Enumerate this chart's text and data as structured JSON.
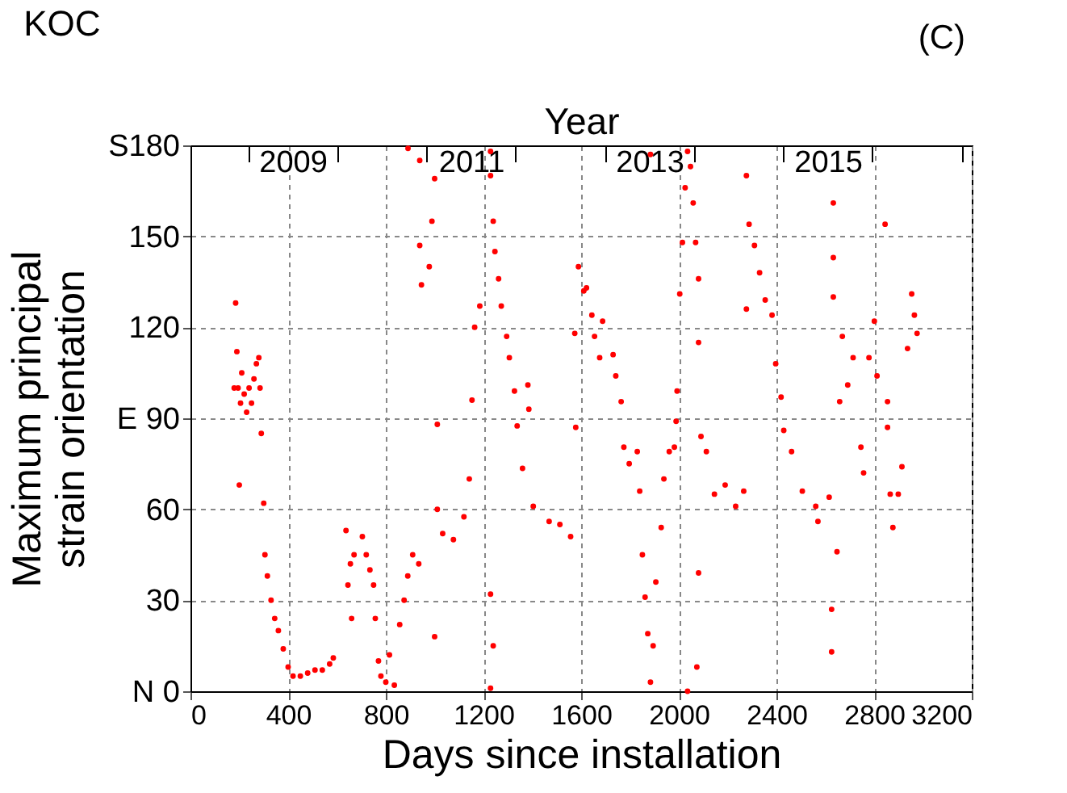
{
  "chart_data": {
    "type": "scatter",
    "title": "KOC",
    "xlabel": "Days since installation",
    "ylabel": "Maximum principal strain orientation",
    "x2label": "Year",
    "annotations": [
      "(C)"
    ],
    "xlim": [
      0,
      3200
    ],
    "xticks": [
      0,
      400,
      800,
      1200,
      1600,
      2000,
      2400,
      2800,
      3200
    ],
    "ylim": [
      0,
      180
    ],
    "yticks": [
      {
        "value": 0,
        "label": "N 0"
      },
      30,
      60,
      {
        "value": 90,
        "label": "E 90"
      },
      120,
      150,
      {
        "value": 180,
        "label": "S180"
      }
    ],
    "x2lim": [
      2008.354,
      2017.115
    ],
    "x2ticks": [
      {
        "value": 2009,
        "label": null
      },
      {
        "value": 2009.5,
        "label": "2009"
      },
      {
        "value": 2010,
        "label": null
      },
      {
        "value": 2011,
        "label": null
      },
      {
        "value": 2011.5,
        "label": "2011"
      },
      {
        "value": 2012,
        "label": null
      },
      {
        "value": 2013,
        "label": null
      },
      {
        "value": 2013.5,
        "label": "2013"
      },
      {
        "value": 2014,
        "label": null
      },
      {
        "value": 2015,
        "label": null
      },
      {
        "value": 2015.5,
        "label": "2015"
      },
      {
        "value": 2016,
        "label": null
      },
      {
        "value": 2017,
        "label": null
      }
    ],
    "grid": true,
    "marker": "circle",
    "series": [
      {
        "color": "#ff0000",
        "x": [
          179,
          185,
          190,
          195,
          200,
          205,
          210,
          220,
          230,
          240,
          250,
          260,
          270,
          280,
          285,
          290,
          300,
          305,
          315,
          330,
          345,
          360,
          380,
          400,
          420,
          450,
          480,
          510,
          540,
          570,
          585,
          637,
          645,
          655,
          660,
          670,
          704,
          720,
          735,
          750,
          757,
          770,
          780,
          800,
          815,
          835,
          857,
          875,
          890,
          910,
          935,
          891,
          939,
          939,
          946,
          978,
          989,
          1000,
          1000,
          1011,
          1011,
          1033,
          1077,
          1120,
          1142,
          1153,
          1164,
          1185,
          1229,
          1229,
          1229,
          1229,
          1240,
          1240,
          1247,
          1262,
          1273,
          1295,
          1306,
          1327,
          1338,
          1360,
          1382,
          1386,
          1404,
          1469,
          1513,
          1557,
          1574,
          1578,
          1589,
          1611,
          1622,
          1644,
          1655,
          1676,
          1688,
          1731,
          1742,
          1764,
          1775,
          1797,
          1830,
          1840,
          1851,
          1862,
          1873,
          1884,
          1884,
          1895,
          1906,
          1928,
          1939,
          1961,
          1982,
          1989,
          1993,
          2004,
          2015,
          2026,
          2036,
          2036,
          2048,
          2059,
          2069,
          2074,
          2081,
          2081,
          2081,
          2091,
          2113,
          2146,
          2190,
          2233,
          2266,
          2277,
          2277,
          2288,
          2310,
          2331,
          2354,
          2382,
          2397,
          2419,
          2430,
          2462,
          2506,
          2561,
          2570,
          2616,
          2626,
          2626,
          2633,
          2633,
          2633,
          2648,
          2659,
          2670,
          2692,
          2714,
          2746,
          2757,
          2779,
          2801,
          2812,
          2845,
          2855,
          2855,
          2866,
          2877,
          2899,
          2914,
          2937,
          2954,
          2965,
          2976
        ],
        "values": [
          100,
          128,
          112,
          100,
          68,
          95,
          105,
          98,
          92,
          100,
          95,
          103,
          108,
          110,
          100,
          85,
          62,
          45,
          38,
          30,
          24,
          20,
          14,
          8,
          5,
          5,
          6,
          7,
          7,
          9,
          11,
          53,
          35,
          42,
          24,
          45,
          51,
          45,
          40,
          35,
          24,
          10,
          5,
          3,
          12,
          2,
          22,
          30,
          38,
          45,
          42,
          179,
          175,
          147,
          134,
          140,
          155,
          169,
          18,
          88,
          60,
          52,
          50,
          57.5,
          70,
          96,
          120,
          127,
          178,
          170,
          32,
          1,
          155,
          15,
          145,
          136,
          127,
          117,
          110,
          99,
          87.5,
          73.5,
          101,
          93,
          61,
          56,
          55,
          51,
          118,
          87,
          140,
          132,
          133,
          124,
          117,
          110,
          122,
          111,
          104,
          95.5,
          80.5,
          75,
          79,
          66,
          45,
          31,
          19,
          3,
          177,
          15,
          36,
          54,
          70,
          79,
          80.5,
          89,
          99,
          131,
          148,
          166,
          178,
          0,
          173,
          161,
          148,
          8,
          39,
          136,
          115,
          84,
          79,
          65,
          68,
          61,
          66,
          170,
          126,
          154,
          147,
          138,
          129,
          124,
          108,
          97,
          86,
          79,
          66,
          61,
          56,
          64,
          27,
          13,
          161,
          143,
          130,
          46,
          95.5,
          117,
          101,
          110,
          80.5,
          72,
          110,
          122,
          104,
          154,
          95.5,
          87,
          65,
          54,
          65,
          74,
          113,
          131,
          124,
          118
        ]
      }
    ]
  }
}
